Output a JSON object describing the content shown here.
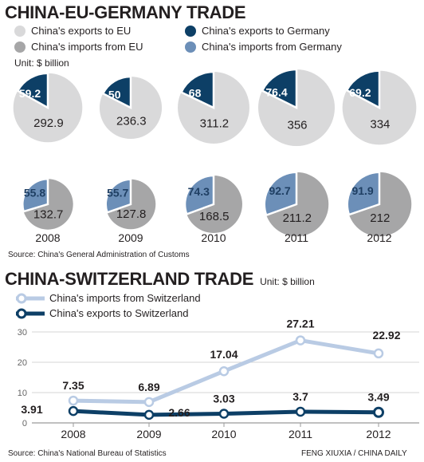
{
  "section1": {
    "title": "CHINA-EU-GERMANY TRADE",
    "unit": "Unit: $ billion",
    "legend": [
      {
        "label": "China's exports to EU",
        "color": "#d9d9da"
      },
      {
        "label": "China's exports to Germany",
        "color": "#0d3f66"
      },
      {
        "label": "China's imports from EU",
        "color": "#a6a6a7"
      },
      {
        "label": "China's imports from Germany",
        "color": "#6c8fb8"
      }
    ],
    "source": "Source: China's General Administration of Customs"
  },
  "section2": {
    "title": "CHINA-SWITZERLAND TRADE",
    "unit": "Unit: $ billion",
    "source": "Source: China's National Bureau of Statistics",
    "credit": "FENG XIUXIA / CHINA DAILY"
  },
  "chart_data": [
    {
      "type": "pie",
      "name": "exports",
      "categories": [
        "2008",
        "2009",
        "2010",
        "2011",
        "2012"
      ],
      "series": [
        {
          "name": "China's exports to EU",
          "values": [
            292.9,
            236.3,
            311.2,
            356,
            334
          ],
          "color": "#d9d9da"
        },
        {
          "name": "China's exports to Germany",
          "values": [
            59.2,
            50,
            68,
            76.4,
            69.2
          ],
          "color": "#0d3f66"
        }
      ]
    },
    {
      "type": "pie",
      "name": "imports",
      "categories": [
        "2008",
        "2009",
        "2010",
        "2011",
        "2012"
      ],
      "series": [
        {
          "name": "China's imports from EU",
          "values": [
            132.7,
            127.8,
            168.5,
            211.2,
            212
          ],
          "color": "#a6a6a7"
        },
        {
          "name": "China's imports from Germany",
          "values": [
            55.8,
            55.7,
            74.3,
            92.7,
            91.9
          ],
          "color": "#6c8fb8"
        }
      ]
    },
    {
      "type": "line",
      "x": [
        "2008",
        "2009",
        "2010",
        "2011",
        "2012"
      ],
      "ylim": [
        0,
        30
      ],
      "yticks": [
        0,
        10,
        20,
        30
      ],
      "grid": true,
      "legend_position": "top-left",
      "series": [
        {
          "name": "China's imports from Switzerland",
          "values": [
            7.35,
            6.89,
            17.04,
            27.21,
            22.92
          ],
          "color": "#b9cbe4"
        },
        {
          "name": "China's exports to Switzerland",
          "values": [
            3.91,
            2.66,
            3.03,
            3.7,
            3.49
          ],
          "color": "#0d3f66"
        }
      ]
    }
  ]
}
